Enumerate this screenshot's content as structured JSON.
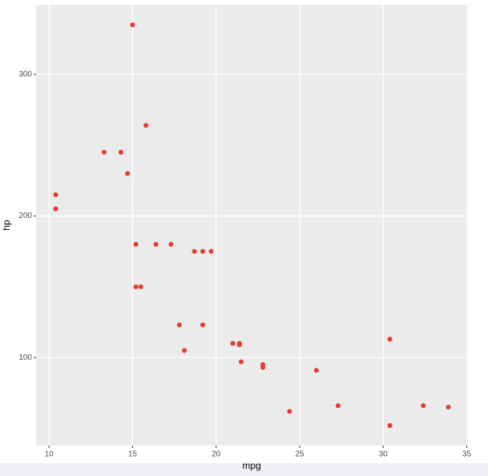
{
  "chart_data": {
    "type": "scatter",
    "x_label": "mpg",
    "y_label": "hp",
    "x": [
      21.0,
      21.0,
      22.8,
      21.4,
      18.7,
      18.1,
      14.3,
      24.4,
      22.8,
      19.2,
      17.8,
      16.4,
      17.3,
      15.2,
      10.4,
      10.4,
      14.7,
      32.4,
      30.4,
      33.9,
      21.5,
      15.5,
      15.2,
      13.3,
      19.2,
      27.3,
      26.0,
      30.4,
      15.8,
      19.7,
      15.0,
      21.4
    ],
    "values": [
      110,
      110,
      93,
      110,
      175,
      105,
      245,
      62,
      95,
      123,
      123,
      180,
      180,
      180,
      205,
      215,
      230,
      66,
      52,
      65,
      97,
      150,
      150,
      245,
      175,
      66,
      91,
      113,
      264,
      175,
      335,
      109
    ],
    "color": "#e8392f",
    "xlim": [
      9.225,
      35.075
    ],
    "ylim": [
      37.85,
      349.15
    ],
    "xticks": [
      10,
      15,
      20,
      25,
      30,
      35
    ],
    "yticks": [
      100,
      200,
      300
    ],
    "grid": true
  }
}
